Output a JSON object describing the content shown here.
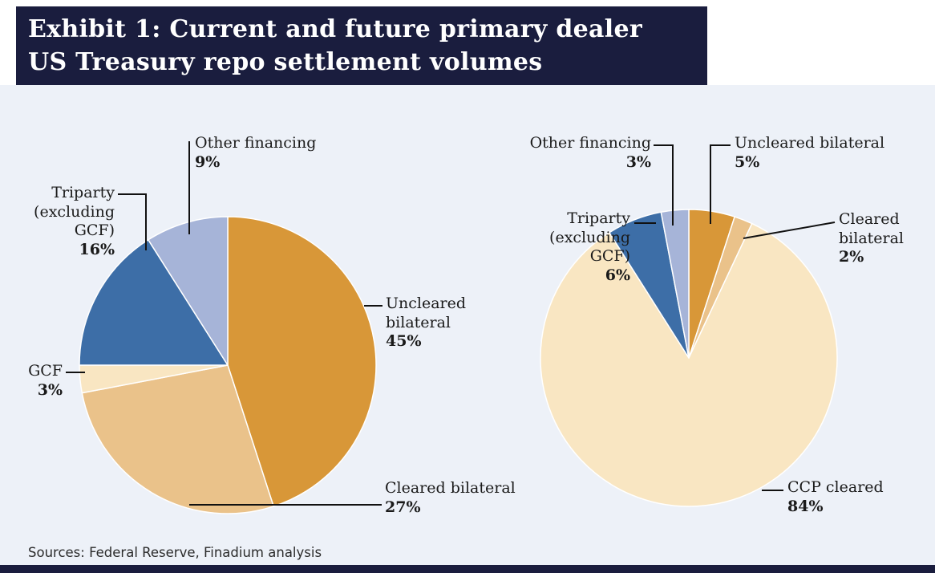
{
  "header": {
    "title_line1": "Exhibit 1: Current and future primary dealer",
    "title_line2": "US Treasury repo settlement volumes"
  },
  "footer": {
    "sources": "Sources: Federal Reserve, Finadium analysis"
  },
  "colors": {
    "header_navy": "#1a1d3e",
    "chart_background": "#edf1f8",
    "orange": "#d89738",
    "tan": "#eac28a",
    "cream": "#f9e6c2",
    "blue": "#3d6ea7",
    "periwinkle": "#a6b4d8",
    "leader_line": "#111111",
    "label_text": "#1a1a1a"
  },
  "chart_data": [
    {
      "type": "pie",
      "name": "current",
      "start_angle_deg": 0,
      "direction": "clockwise",
      "slices": [
        {
          "label": "Uncleared bilateral",
          "value": 45,
          "pct_label": "45%",
          "color": "#d89738"
        },
        {
          "label": "Cleared bilateral",
          "value": 27,
          "pct_label": "27%",
          "color": "#eac28a"
        },
        {
          "label": "GCF",
          "value": 3,
          "pct_label": "3%",
          "color": "#f9e6c2"
        },
        {
          "label": "Triparty (excluding GCF)",
          "value": 16,
          "pct_label": "16%",
          "color": "#3d6ea7"
        },
        {
          "label": "Other financing",
          "value": 9,
          "pct_label": "9%",
          "color": "#a6b4d8"
        }
      ]
    },
    {
      "type": "pie",
      "name": "future",
      "start_angle_deg": 0,
      "direction": "clockwise",
      "slices": [
        {
          "label": "Uncleared bilateral",
          "value": 5,
          "pct_label": "5%",
          "color": "#d89738"
        },
        {
          "label": "Cleared bilateral",
          "value": 2,
          "pct_label": "2%",
          "color": "#eac28a"
        },
        {
          "label": "CCP cleared",
          "value": 84,
          "pct_label": "84%",
          "color": "#f9e6c2"
        },
        {
          "label": "Triparty (excluding GCF)",
          "value": 6,
          "pct_label": "6%",
          "color": "#3d6ea7"
        },
        {
          "label": "Other financing",
          "value": 3,
          "pct_label": "3%",
          "color": "#a6b4d8"
        }
      ]
    }
  ]
}
